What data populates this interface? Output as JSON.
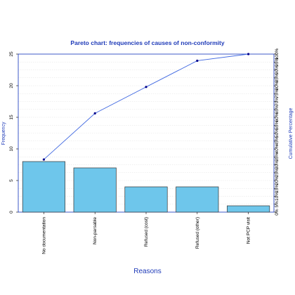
{
  "chart_data": {
    "type": "bar",
    "title": "Pareto chart: frequencies of causes of non-conformity",
    "xlabel": "Reasons",
    "ylabel": "Frequency",
    "y2label": "Cumulative Percentage",
    "categories": [
      "No documentation",
      "Non-parsable",
      "Refused (cost)",
      "Refused (other)",
      "Not PCP visit"
    ],
    "series": [
      {
        "values": [
          8,
          7,
          4,
          4,
          1
        ]
      }
    ],
    "cumulative_line": {
      "type": "line",
      "values_pct": [
        33.3,
        62.5,
        79.2,
        95.8,
        100.0
      ]
    },
    "ylim": [
      0,
      25
    ],
    "yticks": [
      0,
      5,
      10,
      15,
      20,
      25
    ],
    "y2lim": [
      0,
      100
    ],
    "y2ticks": [
      "0%",
      "5%",
      "10%",
      "15%",
      "20%",
      "25%",
      "30%",
      "35%",
      "40%",
      "45%",
      "50%",
      "55%",
      "60%",
      "65%",
      "70%",
      "75%",
      "80%",
      "85%",
      "90%",
      "95%",
      "100%"
    ],
    "grid": true,
    "colors": {
      "bar_fill": "#6EC6EB",
      "bar_stroke": "#333333",
      "line": "#4169E1",
      "point": "#00008B",
      "accent_text": "#1E3AB8",
      "frame": "#2B48C4"
    }
  }
}
